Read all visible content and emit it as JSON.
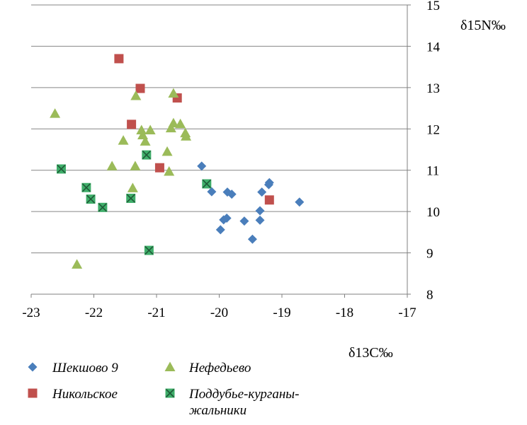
{
  "chart_data": {
    "type": "scatter",
    "title": "",
    "xlabel": "δ13C‰",
    "ylabel": "δ15N‰",
    "xlim": [
      -23,
      -17
    ],
    "ylim": [
      8,
      15
    ],
    "xticks": [
      "-23",
      "-22",
      "-21",
      "-20",
      "-19",
      "-18",
      "-17"
    ],
    "yticks": [
      "8",
      "9",
      "10",
      "11",
      "12",
      "13",
      "14",
      "15"
    ],
    "grid": "horizontal",
    "legend_position": "bottom",
    "series": [
      {
        "name": "Шекшово 9",
        "marker": "diamond",
        "color": "#4a7ebb",
        "points": [
          [
            -20.28,
            11.1
          ],
          [
            -20.12,
            10.48
          ],
          [
            -19.87,
            10.47
          ],
          [
            -19.8,
            10.42
          ],
          [
            -19.32,
            10.47
          ],
          [
            -19.21,
            10.65
          ],
          [
            -19.2,
            10.7
          ],
          [
            -18.72,
            10.23
          ],
          [
            -19.35,
            10.02
          ],
          [
            -19.88,
            9.84
          ],
          [
            -19.93,
            9.8
          ],
          [
            -19.6,
            9.77
          ],
          [
            -19.35,
            9.79
          ],
          [
            -19.98,
            9.56
          ],
          [
            -19.47,
            9.33
          ]
        ]
      },
      {
        "name": "Никольское",
        "marker": "square",
        "color": "#c0504d",
        "points": [
          [
            -21.6,
            13.7
          ],
          [
            -21.26,
            12.98
          ],
          [
            -20.67,
            12.75
          ],
          [
            -21.4,
            12.11
          ],
          [
            -20.95,
            11.06
          ],
          [
            -19.2,
            10.28
          ]
        ]
      },
      {
        "name": "Нефедьево",
        "marker": "triangle",
        "color": "#9bbb59",
        "points": [
          [
            -22.62,
            12.37
          ],
          [
            -21.33,
            12.8
          ],
          [
            -20.73,
            12.86
          ],
          [
            -21.24,
            11.97
          ],
          [
            -21.22,
            11.85
          ],
          [
            -21.1,
            11.97
          ],
          [
            -20.73,
            12.14
          ],
          [
            -20.77,
            12.02
          ],
          [
            -20.62,
            12.12
          ],
          [
            -20.54,
            11.9
          ],
          [
            -20.53,
            11.82
          ],
          [
            -21.53,
            11.72
          ],
          [
            -21.18,
            11.7
          ],
          [
            -20.83,
            11.45
          ],
          [
            -21.71,
            11.1
          ],
          [
            -21.34,
            11.1
          ],
          [
            -20.8,
            10.97
          ],
          [
            -21.38,
            10.57
          ],
          [
            -22.27,
            8.72
          ]
        ]
      },
      {
        "name": "Поддубье-курганы-жальники",
        "marker": "x-square",
        "color": "#3fae6a",
        "points": [
          [
            -21.16,
            11.37
          ],
          [
            -22.52,
            11.03
          ],
          [
            -20.2,
            10.67
          ],
          [
            -22.12,
            10.58
          ],
          [
            -22.05,
            10.3
          ],
          [
            -21.41,
            10.32
          ],
          [
            -21.86,
            10.1
          ],
          [
            -21.12,
            9.06
          ]
        ]
      }
    ],
    "legend": {
      "entries": [
        {
          "label": "Шекшово 9",
          "series": 0
        },
        {
          "label": "Нефедьево",
          "series": 2
        },
        {
          "label": "Никольское",
          "series": 1
        },
        {
          "label_line1": "Поддубье-курганы-",
          "label_line2": "жальники",
          "series": 3
        }
      ]
    }
  }
}
